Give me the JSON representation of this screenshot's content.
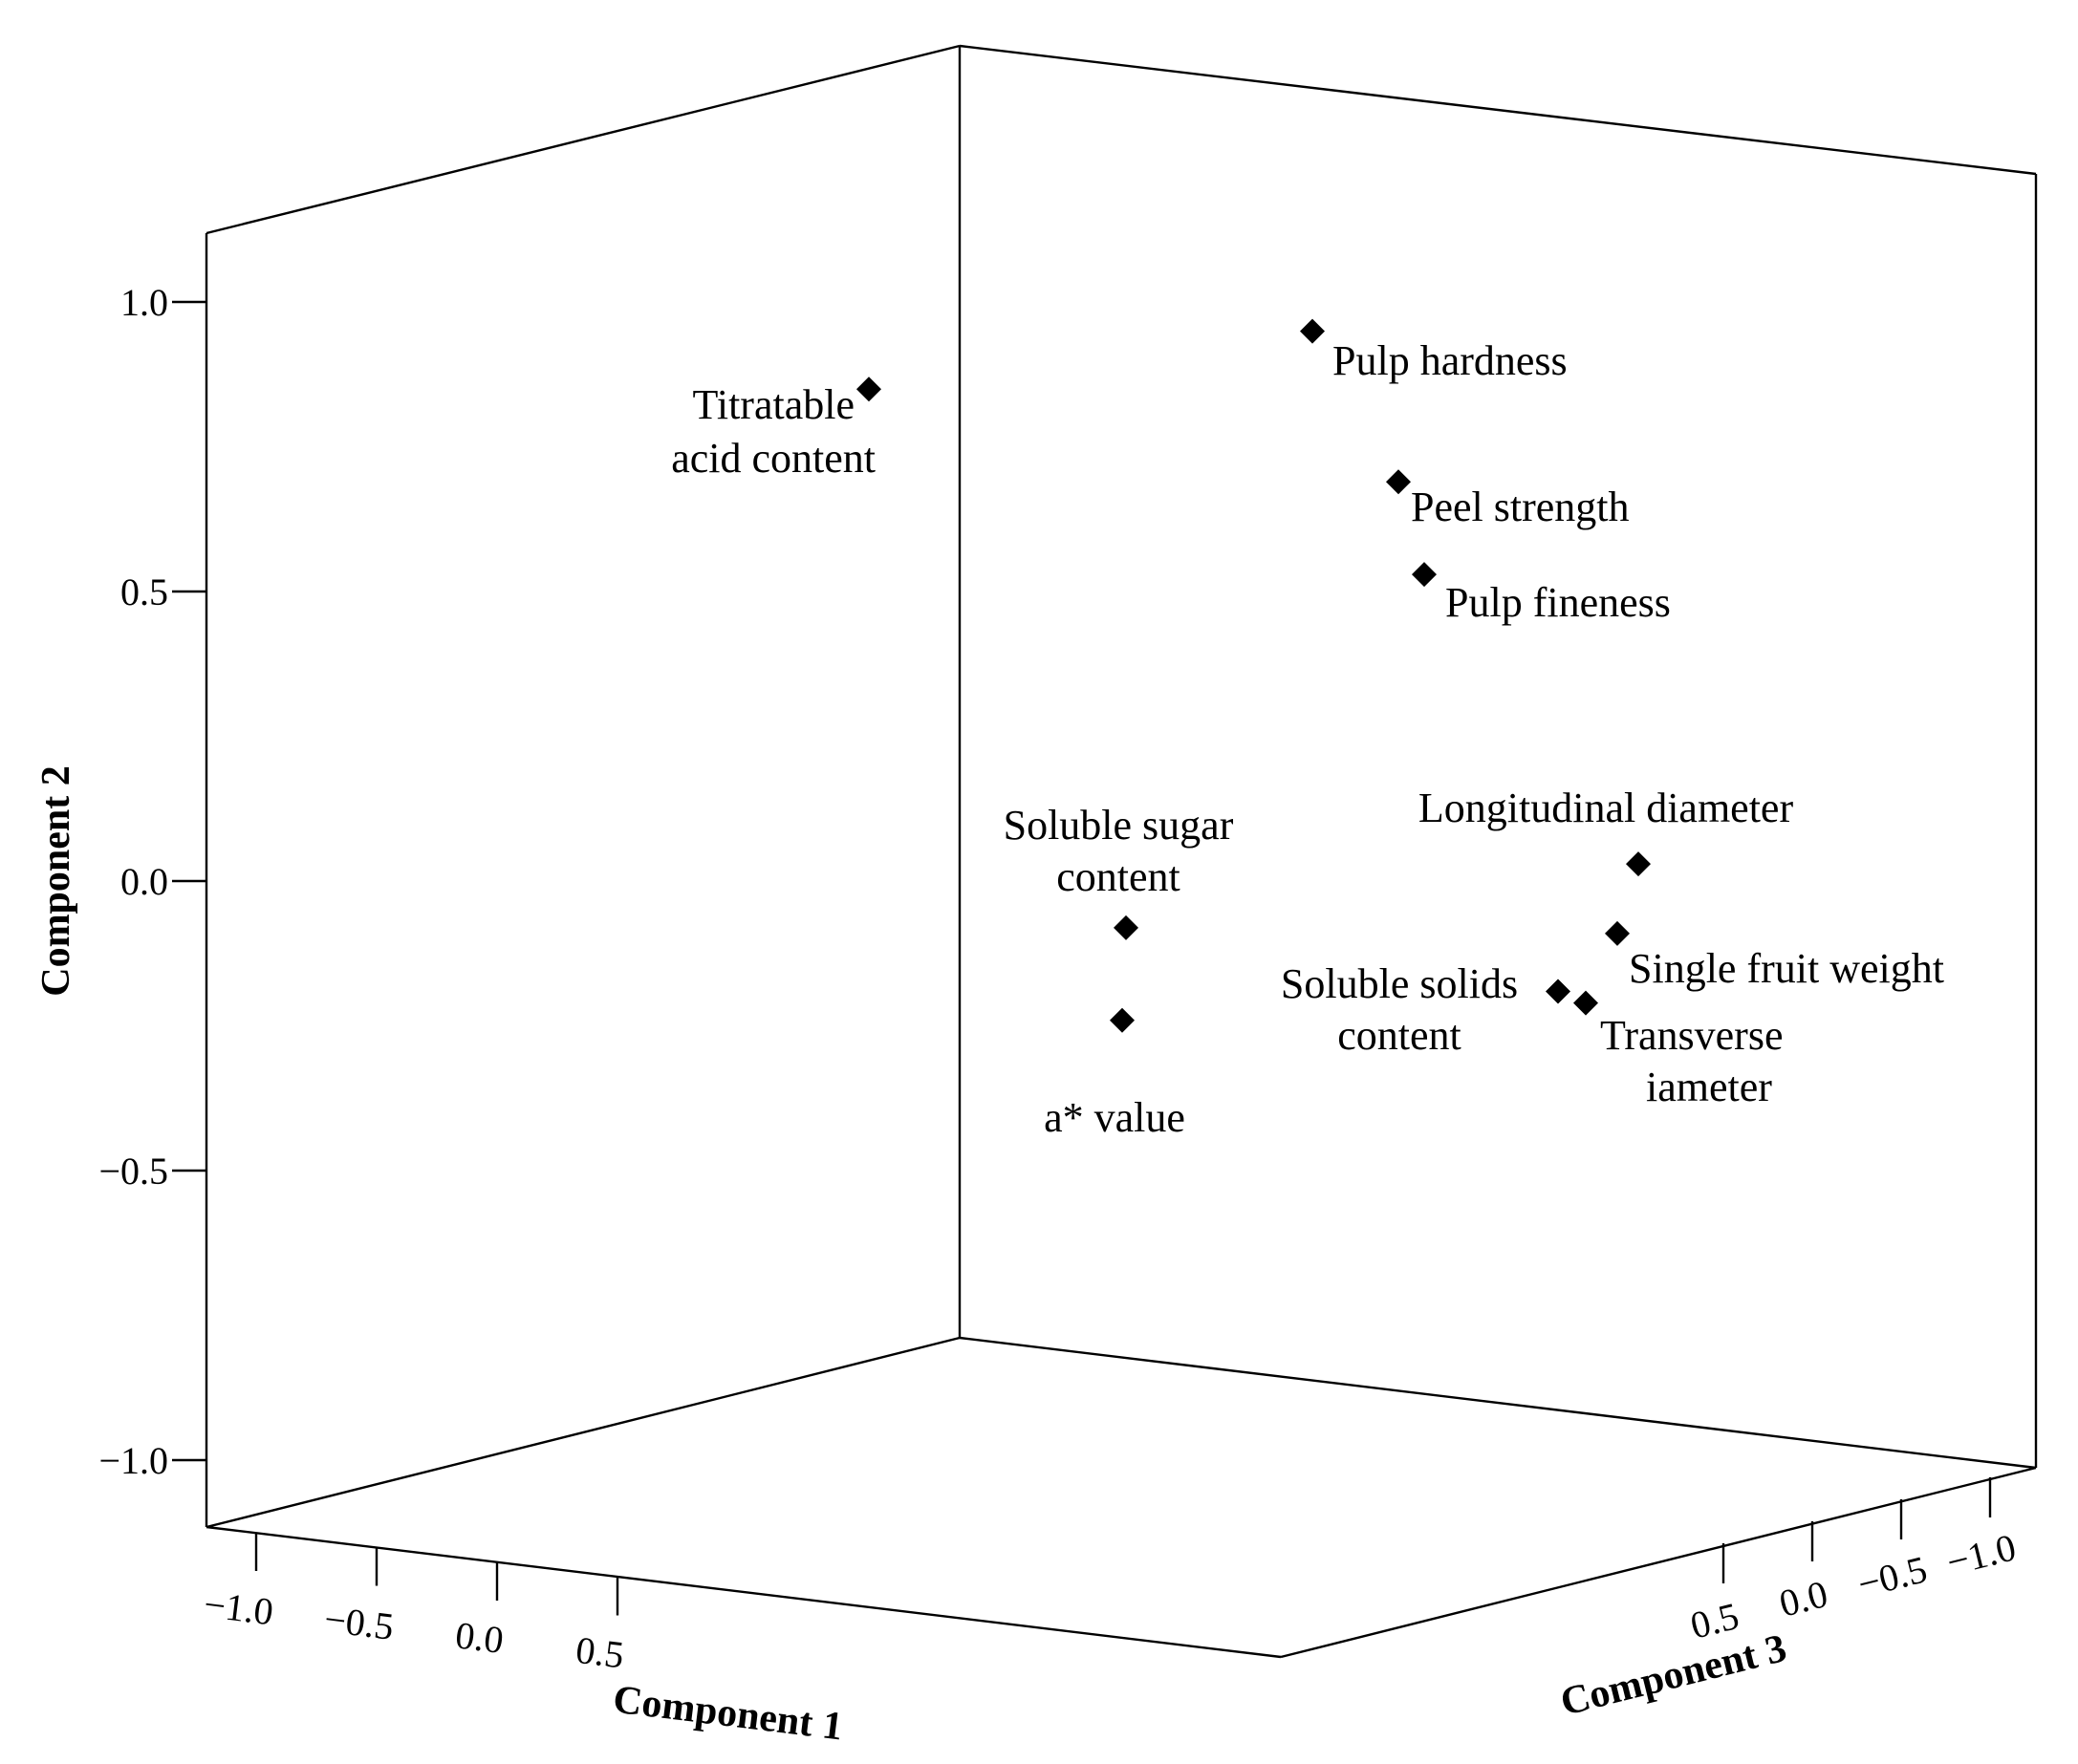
{
  "chart_data": {
    "type": "scatter",
    "subtype": "3d-loading-plot",
    "marker": "diamond",
    "marker_color": "#000000",
    "axes": {
      "x": {
        "label": "Component 1",
        "range": [
          -1.1,
          1.1
        ],
        "ticks": [
          -1.0,
          -0.5,
          0.0,
          0.5
        ],
        "tick_labels": [
          "−1.0",
          "−0.5",
          "0.0",
          "0.5"
        ]
      },
      "y": {
        "label": "Component 2",
        "range": [
          -1.1,
          1.1
        ],
        "ticks": [
          -1.0,
          -0.5,
          0.0,
          0.5,
          1.0
        ],
        "tick_labels": [
          "−1.0",
          "−0.5",
          "0.0",
          "0.5",
          "1.0"
        ]
      },
      "z": {
        "label": "Component 3",
        "range": [
          -1.1,
          1.1
        ],
        "ticks": [
          -1.0,
          -0.5,
          0.0,
          0.5
        ],
        "tick_labels": [
          "−1.0",
          "−0.5",
          "0.0",
          "0.5"
        ]
      }
    },
    "points": [
      {
        "label": "Titratable acid content",
        "y": 0.79
      },
      {
        "label": "Pulp hardness",
        "y": 0.89
      },
      {
        "label": "Peel strength",
        "y": 0.63
      },
      {
        "label": "Pulp fineness",
        "y": 0.47
      },
      {
        "label": "Longitudinal diameter",
        "y": -0.03
      },
      {
        "label": "Soluble sugar content",
        "y": -0.14
      },
      {
        "label": "Single fruit weight",
        "y": -0.15
      },
      {
        "label": "Soluble solids content",
        "y": -0.25
      },
      {
        "label": "Transverse diameter",
        "y": -0.27
      },
      {
        "label": "a* value",
        "y": -0.3
      }
    ]
  }
}
